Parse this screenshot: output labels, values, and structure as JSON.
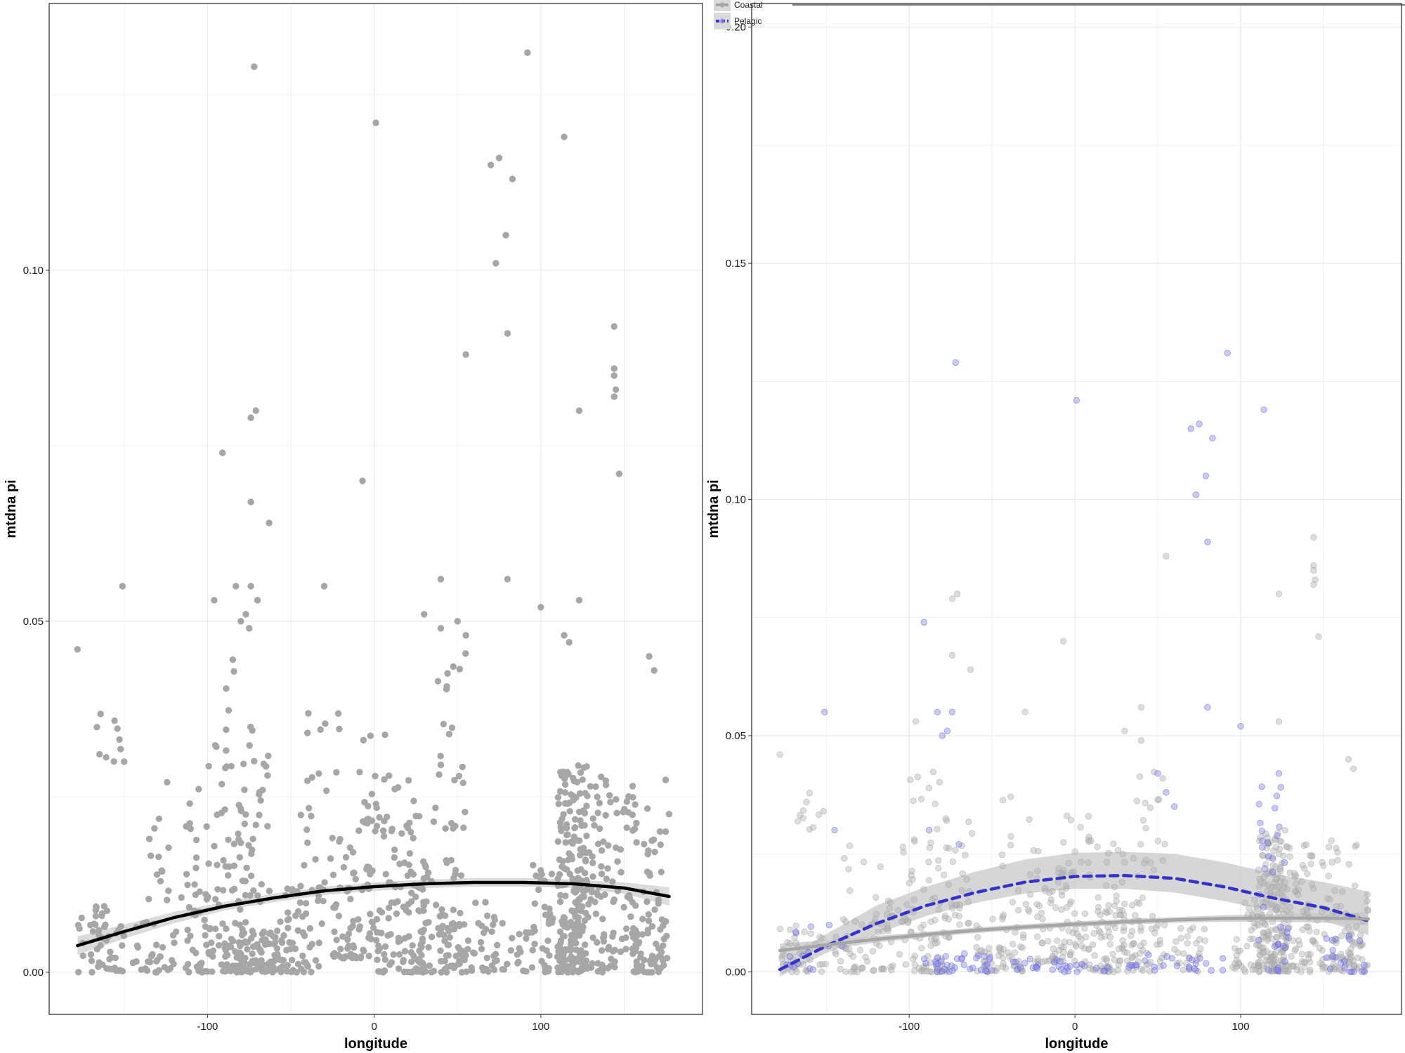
{
  "chart_data": [
    {
      "type": "scatter",
      "title": "",
      "xlabel": "longitude",
      "ylabel": "mtdna pi",
      "xlim": [
        -195,
        197
      ],
      "ylim": [
        -0.006,
        0.138
      ],
      "x_ticks": [
        -100,
        0,
        100
      ],
      "x_tick_labels": [
        "-100",
        "0",
        "100"
      ],
      "y_ticks": [
        0.0,
        0.05,
        0.1
      ],
      "y_tick_labels": [
        "0.00",
        "0.05",
        "0.10"
      ],
      "grid": true,
      "point_color": "#a6a6a6",
      "series": [
        {
          "role": "outliers",
          "points": [
            [
              -72,
              0.129
            ],
            [
              92,
              0.131
            ],
            [
              1,
              0.121
            ],
            [
              114,
              0.119
            ],
            [
              70,
              0.115
            ],
            [
              75,
              0.116
            ],
            [
              83,
              0.113
            ],
            [
              79,
              0.105
            ],
            [
              73,
              0.101
            ],
            [
              80,
              0.091
            ],
            [
              55,
              0.088
            ],
            [
              144,
              0.092
            ],
            [
              144,
              0.086
            ],
            [
              144,
              0.085
            ],
            [
              145,
              0.083
            ],
            [
              144,
              0.082
            ],
            [
              123,
              0.08
            ],
            [
              -74,
              0.079
            ],
            [
              -71,
              0.08
            ],
            [
              -91,
              0.074
            ],
            [
              -7,
              0.07
            ],
            [
              147,
              0.071
            ],
            [
              -74,
              0.067
            ],
            [
              -63,
              0.064
            ],
            [
              -178,
              0.046
            ],
            [
              -151,
              0.055
            ],
            [
              -30,
              0.055
            ],
            [
              -96,
              0.053
            ],
            [
              -83,
              0.055
            ],
            [
              -74,
              0.055
            ],
            [
              -70,
              0.053
            ],
            [
              -77,
              0.051
            ],
            [
              -80,
              0.05
            ],
            [
              -75,
              0.049
            ],
            [
              40,
              0.056
            ],
            [
              80,
              0.056
            ],
            [
              100,
              0.052
            ],
            [
              123,
              0.053
            ],
            [
              114,
              0.048
            ],
            [
              117,
              0.047
            ],
            [
              165,
              0.045
            ],
            [
              168,
              0.043
            ],
            [
              30,
              0.051
            ],
            [
              50,
              0.05
            ],
            [
              40,
              0.049
            ],
            [
              55,
              0.048
            ]
          ]
        },
        {
          "role": "cloud",
          "clusters": [
            [
              -178,
              -150,
              0.0,
              0.01,
              50
            ],
            [
              -168,
              -150,
              0.03,
              0.038,
              10
            ],
            [
              -145,
              -120,
              0.0,
              0.008,
              30
            ],
            [
              -140,
              -100,
              0.01,
              0.028,
              25
            ],
            [
              -120,
              -75,
              0.0,
              0.015,
              90
            ],
            [
              -100,
              -80,
              0.015,
              0.045,
              30
            ],
            [
              -90,
              -55,
              0.0,
              0.006,
              90
            ],
            [
              -80,
              -62,
              0.01,
              0.035,
              35
            ],
            [
              -60,
              -30,
              0.0,
              0.012,
              60
            ],
            [
              -45,
              -20,
              0.012,
              0.038,
              25
            ],
            [
              -25,
              0,
              0.002,
              0.02,
              70
            ],
            [
              -10,
              10,
              0.02,
              0.034,
              25
            ],
            [
              0,
              30,
              0.0,
              0.014,
              70
            ],
            [
              5,
              30,
              0.012,
              0.03,
              30
            ],
            [
              25,
              55,
              0.0,
              0.016,
              70
            ],
            [
              35,
              55,
              0.02,
              0.046,
              25
            ],
            [
              40,
              60,
              0.0,
              0.007,
              30
            ],
            [
              60,
              80,
              0.0,
              0.01,
              30
            ],
            [
              80,
              95,
              0.0,
              0.006,
              15
            ],
            [
              95,
              115,
              0.0,
              0.016,
              50
            ],
            [
              110,
              128,
              0.0,
              0.03,
              160
            ],
            [
              118,
              145,
              0.0,
              0.028,
              120
            ],
            [
              145,
              177,
              0.0,
              0.028,
              80
            ],
            [
              155,
              175,
              0.0,
              0.008,
              40
            ]
          ]
        }
      ],
      "smooth": {
        "color": "#000000",
        "x": [
          -178,
          -150,
          -120,
          -90,
          -60,
          -30,
          0,
          30,
          60,
          90,
          120,
          150,
          177
        ],
        "y": [
          0.0038,
          0.0058,
          0.0078,
          0.0094,
          0.0106,
          0.0116,
          0.0122,
          0.0126,
          0.0128,
          0.0128,
          0.0126,
          0.012,
          0.0108
        ],
        "ci_low": [
          0.0025,
          0.0048,
          0.007,
          0.0088,
          0.01,
          0.011,
          0.0116,
          0.012,
          0.0122,
          0.0122,
          0.012,
          0.0112,
          0.0095
        ],
        "ci_high": [
          0.0051,
          0.0068,
          0.0086,
          0.01,
          0.0112,
          0.0122,
          0.0128,
          0.0132,
          0.0134,
          0.0134,
          0.0132,
          0.0128,
          0.0121
        ]
      }
    },
    {
      "type": "scatter",
      "title": "",
      "xlabel": "longitude",
      "ylabel": "mtdna pi",
      "xlim": [
        -195,
        197
      ],
      "ylim": [
        -0.009,
        0.205
      ],
      "x_ticks": [
        -100,
        0,
        100
      ],
      "x_tick_labels": [
        "-100",
        "0",
        "100"
      ],
      "y_ticks": [
        0.0,
        0.05,
        0.1,
        0.15,
        0.2
      ],
      "y_tick_labels": [
        "0.00",
        "0.05",
        "0.10",
        "0.15",
        "0.20"
      ],
      "grid": true,
      "legend": {
        "position": "top-left",
        "entries": [
          "Coastal",
          "Pelagic"
        ]
      },
      "series": [
        {
          "name": "Pelagic",
          "color": "#3333cc",
          "line_style": "dashed",
          "points": [
            [
              -72,
              0.129
            ],
            [
              92,
              0.131
            ],
            [
              1,
              0.121
            ],
            [
              114,
              0.119
            ],
            [
              70,
              0.115
            ],
            [
              75,
              0.116
            ],
            [
              83,
              0.113
            ],
            [
              79,
              0.105
            ],
            [
              73,
              0.101
            ],
            [
              80,
              0.091
            ],
            [
              -91,
              0.074
            ],
            [
              -151,
              0.055
            ],
            [
              -83,
              0.055
            ],
            [
              -74,
              0.055
            ],
            [
              -77,
              0.051
            ],
            [
              -80,
              0.05
            ],
            [
              80,
              0.056
            ],
            [
              100,
              0.052
            ],
            [
              123,
              0.042
            ],
            [
              -145,
              0.03
            ],
            [
              -88,
              0.03
            ],
            [
              50,
              0.042
            ],
            [
              55,
              0.038
            ],
            [
              60,
              0.035
            ],
            [
              -70,
              0.027
            ]
          ],
          "clusters": [
            [
              -178,
              -140,
              0.0,
              0.01,
              15
            ],
            [
              -95,
              -50,
              0.0,
              0.004,
              35
            ],
            [
              -40,
              20,
              0.0,
              0.003,
              30
            ],
            [
              30,
              90,
              0.0,
              0.004,
              25
            ],
            [
              110,
              130,
              0.0,
              0.04,
              35
            ],
            [
              150,
              177,
              0.0,
              0.01,
              20
            ]
          ],
          "smooth": {
            "x": [
              -178,
              -150,
              -120,
              -90,
              -60,
              -30,
              0,
              30,
              60,
              90,
              120,
              150,
              177
            ],
            "y": [
              0.0005,
              0.0055,
              0.0102,
              0.014,
              0.0168,
              0.019,
              0.0202,
              0.0204,
              0.0198,
              0.018,
              0.0156,
              0.0136,
              0.0108
            ],
            "ci_low": [
              -0.001,
              0.004,
              0.008,
              0.0118,
              0.0146,
              0.0166,
              0.0176,
              0.0176,
              0.0168,
              0.015,
              0.0128,
              0.0108,
              0.0078
            ],
            "ci_high": [
              0.002,
              0.008,
              0.014,
              0.018,
              0.0212,
              0.0238,
              0.0252,
              0.0254,
              0.025,
              0.0232,
              0.0208,
              0.019,
              0.017
            ]
          }
        },
        {
          "name": "Coastal",
          "color": "#a6a6a6",
          "line_style": "solid",
          "points": [
            [
              -178,
              0.046
            ],
            [
              -30,
              0.055
            ],
            [
              -96,
              0.053
            ],
            [
              55,
              0.088
            ],
            [
              144,
              0.092
            ],
            [
              144,
              0.086
            ],
            [
              144,
              0.085
            ],
            [
              145,
              0.083
            ],
            [
              144,
              0.082
            ],
            [
              123,
              0.08
            ],
            [
              -74,
              0.079
            ],
            [
              -71,
              0.08
            ],
            [
              -7,
              0.07
            ],
            [
              147,
              0.071
            ],
            [
              -74,
              0.067
            ],
            [
              -63,
              0.064
            ],
            [
              40,
              0.056
            ],
            [
              123,
              0.053
            ],
            [
              165,
              0.045
            ],
            [
              168,
              0.043
            ],
            [
              30,
              0.051
            ],
            [
              40,
              0.049
            ]
          ],
          "clusters": [
            [
              -178,
              -150,
              0.0,
              0.01,
              40
            ],
            [
              -168,
              -150,
              0.03,
              0.038,
              10
            ],
            [
              -145,
              -120,
              0.0,
              0.008,
              30
            ],
            [
              -140,
              -100,
              0.01,
              0.028,
              25
            ],
            [
              -120,
              -75,
              0.0,
              0.015,
              80
            ],
            [
              -100,
              -80,
              0.015,
              0.045,
              25
            ],
            [
              -80,
              -62,
              0.01,
              0.035,
              30
            ],
            [
              -60,
              -30,
              0.0,
              0.012,
              55
            ],
            [
              -45,
              -20,
              0.012,
              0.038,
              20
            ],
            [
              -25,
              0,
              0.002,
              0.02,
              60
            ],
            [
              -10,
              10,
              0.02,
              0.034,
              20
            ],
            [
              0,
              30,
              0.0,
              0.014,
              60
            ],
            [
              5,
              30,
              0.012,
              0.03,
              25
            ],
            [
              25,
              55,
              0.0,
              0.016,
              60
            ],
            [
              35,
              55,
              0.02,
              0.046,
              20
            ],
            [
              60,
              80,
              0.0,
              0.01,
              25
            ],
            [
              95,
              115,
              0.0,
              0.016,
              45
            ],
            [
              110,
              128,
              0.0,
              0.03,
              140
            ],
            [
              118,
              145,
              0.0,
              0.028,
              110
            ],
            [
              145,
              177,
              0.0,
              0.028,
              70
            ],
            [
              155,
              175,
              0.0,
              0.008,
              35
            ]
          ],
          "smooth": {
            "x": [
              -178,
              -150,
              -120,
              -90,
              -60,
              -30,
              0,
              30,
              60,
              90,
              120,
              150,
              177
            ],
            "y": [
              0.0045,
              0.0057,
              0.0069,
              0.0079,
              0.0088,
              0.0095,
              0.0101,
              0.0106,
              0.011,
              0.0113,
              0.0114,
              0.0114,
              0.0112
            ],
            "ci_low": [
              0.003,
              0.0047,
              0.0062,
              0.0073,
              0.0082,
              0.0089,
              0.0095,
              0.01,
              0.0104,
              0.0106,
              0.0106,
              0.0104,
              0.0098
            ],
            "ci_high": [
              0.006,
              0.0067,
              0.0076,
              0.0085,
              0.0094,
              0.0101,
              0.0107,
              0.0112,
              0.0116,
              0.012,
              0.0122,
              0.0124,
              0.0126
            ]
          }
        }
      ]
    }
  ]
}
